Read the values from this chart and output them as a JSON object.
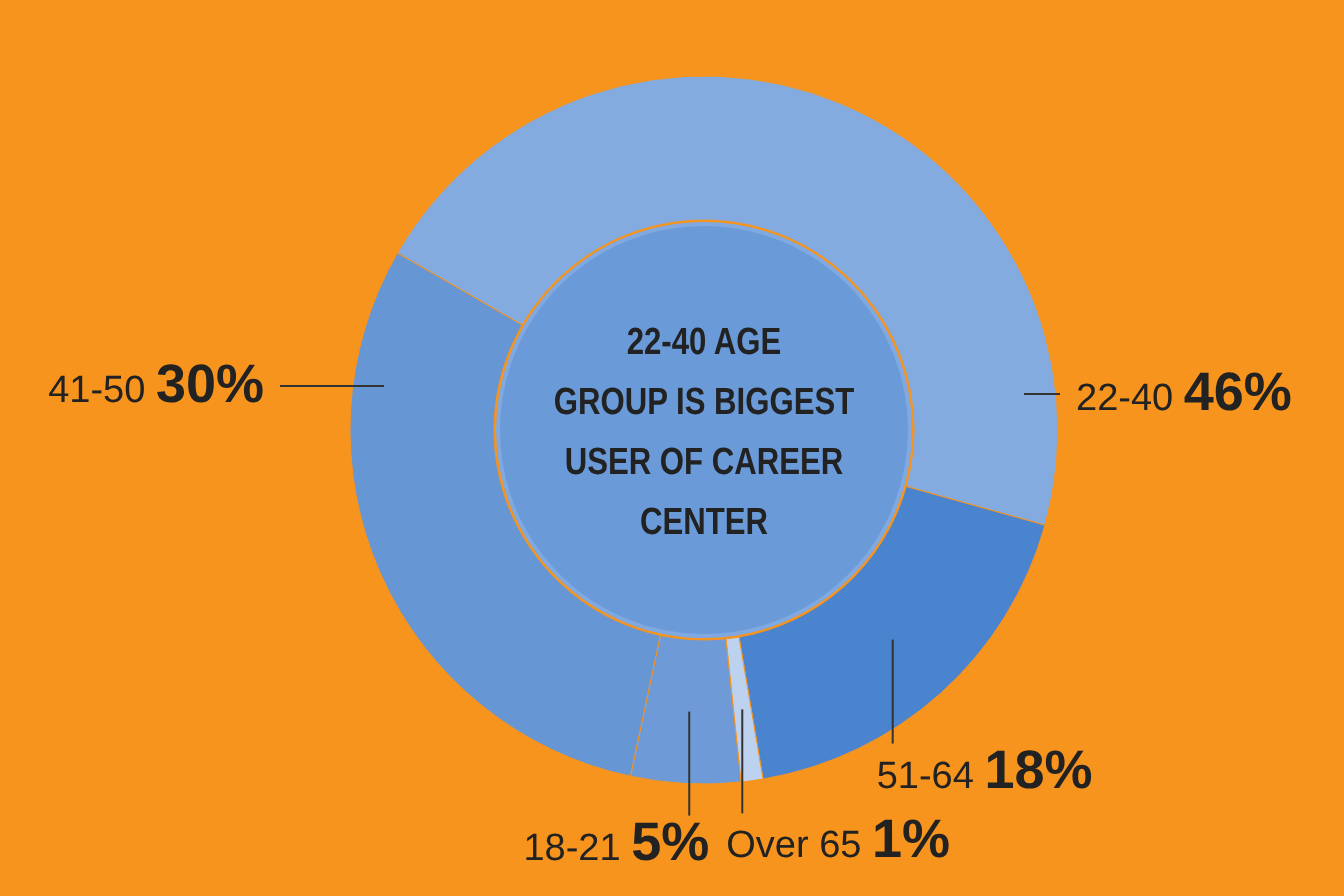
{
  "chart_data": {
    "type": "donut",
    "title": "22-40 AGE GROUP IS BIGGEST USER OF CAREER CENTER",
    "categories": [
      "22-40",
      "51-64",
      "Over 65",
      "18-21",
      "41-50"
    ],
    "values": [
      46,
      18,
      1,
      5,
      30
    ],
    "value_labels": [
      "46%",
      "18%",
      "1%",
      "5%",
      "30%"
    ],
    "colors": [
      "#84abdf",
      "#4a84ce",
      "#bcd2ef",
      "#6e9bd7",
      "#6796d5"
    ]
  }
}
